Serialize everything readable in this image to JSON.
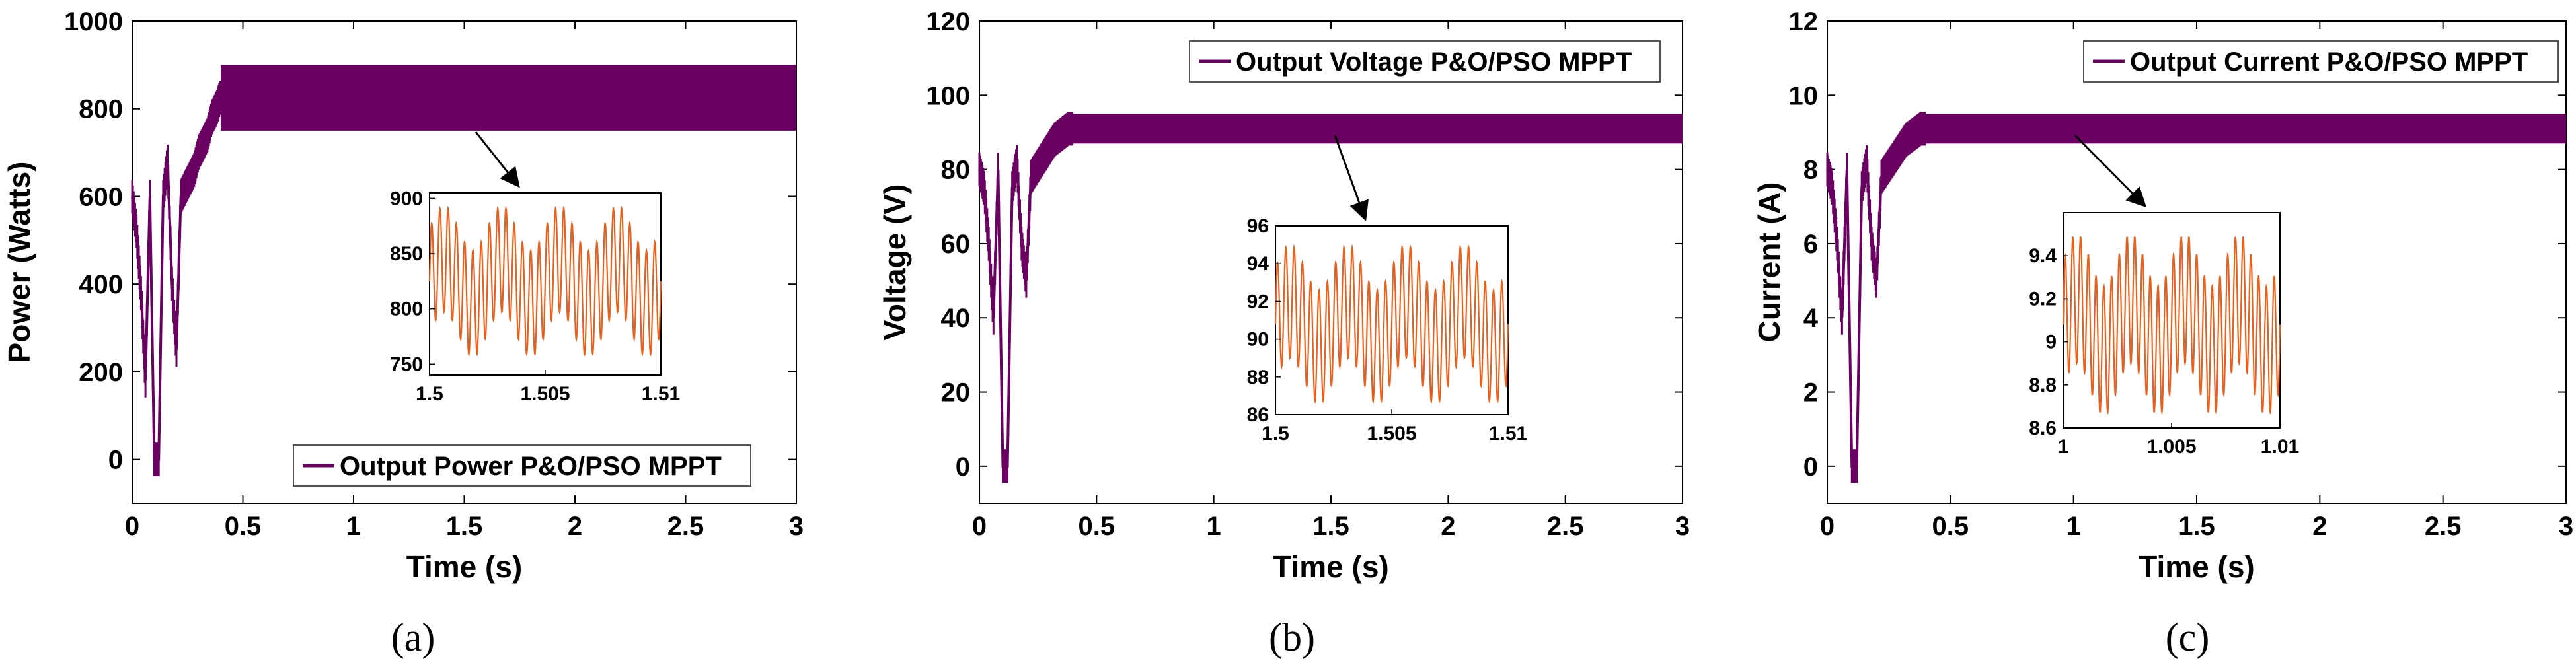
{
  "colors": {
    "main": "#6b0063",
    "inset": "#e8601c",
    "axis": "#000000",
    "background": "#ffffff"
  },
  "chart_data": [
    {
      "type": "line",
      "caption": "(a)",
      "title": "",
      "xlabel": "Time (s)",
      "ylabel": "Power (Watts)",
      "xlim": [
        0,
        3
      ],
      "ylim": [
        -100,
        1000
      ],
      "xticks": [
        0,
        0.5,
        1,
        1.5,
        2,
        2.5,
        3
      ],
      "xtick_labels": [
        "0",
        "0.5",
        "1",
        "1.5",
        "2",
        "2.5",
        "3"
      ],
      "yticks": [
        0,
        200,
        400,
        600,
        800,
        1000
      ],
      "ytick_labels": [
        "0",
        "200",
        "400",
        "600",
        "800",
        "1000"
      ],
      "legend": {
        "label": "Output Power P&O/PSO MPPT",
        "location": "bottom-right"
      },
      "series": [
        {
          "name": "Output Power P&O/PSO MPPT",
          "transient_x": [
            0,
            0.02,
            0.04,
            0.06,
            0.08,
            0.1,
            0.12,
            0.14,
            0.16,
            0.18,
            0.2,
            0.22,
            0.24,
            0.26,
            0.28,
            0.3,
            0.32,
            0.34,
            0.36,
            0.38,
            0.4
          ],
          "transient_y": [
            600,
            520,
            380,
            180,
            600,
            0,
            0,
            600,
            680,
            400,
            250,
            600,
            620,
            640,
            660,
            700,
            720,
            740,
            780,
            800,
            830
          ],
          "steady_x": [
            0.4,
            3
          ],
          "steady_band": [
            750,
            900
          ]
        }
      ],
      "inset": {
        "xlim": [
          1.5,
          1.51
        ],
        "ylim": [
          740,
          905
        ],
        "xticks": [
          1.5,
          1.505,
          1.51
        ],
        "xtick_labels": [
          "1.5",
          "1.505",
          "1.51"
        ],
        "yticks": [
          750,
          800,
          850,
          900
        ],
        "ytick_labels": [
          "750",
          "800",
          "850",
          "900"
        ],
        "center": 825,
        "slow_amp": 20,
        "slow_cycles": 4,
        "fast_amp": 48,
        "fast_cycles": 28
      },
      "arrow_target_data": [
        1.55,
        1000
      ]
    },
    {
      "type": "line",
      "caption": "(b)",
      "title": "",
      "xlabel": "Time (s)",
      "ylabel": "Voltage (V)",
      "xlim": [
        0,
        3
      ],
      "ylim": [
        -10,
        120
      ],
      "xticks": [
        0,
        0.5,
        1,
        1.5,
        2,
        2.5,
        3
      ],
      "xtick_labels": [
        "0",
        "0.5",
        "1",
        "1.5",
        "2",
        "2.5",
        "3"
      ],
      "yticks": [
        0,
        20,
        40,
        60,
        80,
        100,
        120
      ],
      "ytick_labels": [
        "0",
        "20",
        "40",
        "60",
        "80",
        "100",
        "120"
      ],
      "legend": {
        "label": "Output Voltage P&O/PSO MPPT",
        "location": "top-right"
      },
      "series": [
        {
          "name": "Output Voltage P&O/PSO MPPT",
          "transient_x": [
            0,
            0.02,
            0.04,
            0.06,
            0.08,
            0.1,
            0.12,
            0.14,
            0.16,
            0.18,
            0.2,
            0.22,
            0.24,
            0.26,
            0.28,
            0.3,
            0.32,
            0.34,
            0.36,
            0.38,
            0.4
          ],
          "transient_y": [
            80,
            75,
            60,
            40,
            80,
            0,
            0,
            75,
            82,
            60,
            50,
            78,
            80,
            82,
            84,
            86,
            88,
            89,
            90,
            91,
            91
          ],
          "steady_x": [
            0.4,
            3
          ],
          "steady_band": [
            87,
            95
          ]
        }
      ],
      "inset": {
        "xlim": [
          1.5,
          1.51
        ],
        "ylim": [
          86,
          96
        ],
        "xticks": [
          1.5,
          1.505,
          1.51
        ],
        "xtick_labels": [
          "1.5",
          "1.505",
          "1.51"
        ],
        "yticks": [
          86,
          88,
          90,
          92,
          94,
          96
        ],
        "ytick_labels": [
          "86",
          "88",
          "90",
          "92",
          "94",
          "96"
        ],
        "center": 90.8,
        "slow_amp": 1.2,
        "slow_cycles": 4,
        "fast_amp": 3,
        "fast_cycles": 28
      },
      "arrow_target_data": [
        1.55,
        95
      ]
    },
    {
      "type": "line",
      "caption": "(c)",
      "title": "",
      "xlabel": "Time (s)",
      "ylabel": "Current (A)",
      "xlim": [
        0,
        3
      ],
      "ylim": [
        -1,
        12
      ],
      "xticks": [
        0,
        0.5,
        1,
        1.5,
        2,
        2.5,
        3
      ],
      "xtick_labels": [
        "0",
        "0.5",
        "1",
        "1.5",
        "2",
        "2.5",
        "3"
      ],
      "yticks": [
        0,
        2,
        4,
        6,
        8,
        10,
        12
      ],
      "ytick_labels": [
        "0",
        "2",
        "4",
        "6",
        "8",
        "10",
        "12"
      ],
      "legend": {
        "label": "Output Current P&O/PSO MPPT",
        "location": "top-right"
      },
      "series": [
        {
          "name": "Output Current P&O/PSO MPPT",
          "transient_x": [
            0,
            0.02,
            0.04,
            0.06,
            0.08,
            0.1,
            0.12,
            0.14,
            0.16,
            0.18,
            0.2,
            0.22,
            0.24,
            0.26,
            0.28,
            0.3,
            0.32,
            0.34,
            0.36,
            0.38,
            0.4
          ],
          "transient_y": [
            8,
            7.5,
            6,
            4,
            8,
            0,
            0,
            7.5,
            8.2,
            6,
            5,
            7.8,
            8,
            8.2,
            8.4,
            8.6,
            8.8,
            8.9,
            9,
            9.1,
            9.1
          ],
          "steady_x": [
            0.4,
            3
          ],
          "steady_band": [
            8.7,
            9.5
          ]
        }
      ],
      "inset": {
        "xlim": [
          1,
          1.01
        ],
        "ylim": [
          8.6,
          9.6
        ],
        "xticks": [
          1,
          1.005,
          1.01
        ],
        "xtick_labels": [
          "1",
          "1.005",
          "1.01"
        ],
        "yticks": [
          8.6,
          8.8,
          9,
          9.2,
          9.4
        ],
        "ytick_labels": [
          "8.6",
          "8.8",
          "9",
          "9.2",
          "9.4"
        ],
        "center": 9.08,
        "slow_amp": 0.12,
        "slow_cycles": 4,
        "fast_amp": 0.3,
        "fast_cycles": 28
      },
      "arrow_target_data": [
        1.05,
        9.5
      ]
    }
  ]
}
